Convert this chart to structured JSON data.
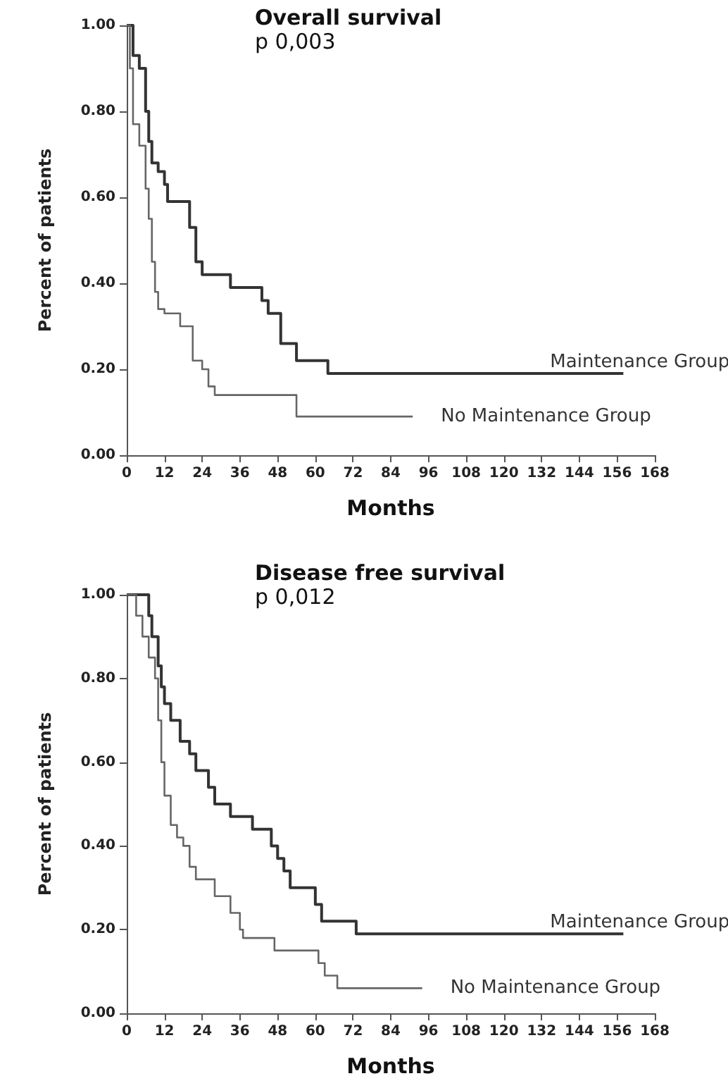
{
  "chart_data": [
    {
      "type": "step",
      "title": "Overall survival",
      "subtitle": "p 0,003",
      "xlabel": "Months",
      "ylabel": "Percent of patients",
      "legend": false,
      "grid": false,
      "marker": "none",
      "xlim": [
        0,
        168
      ],
      "xticks": [
        0,
        12,
        24,
        36,
        48,
        60,
        72,
        84,
        96,
        108,
        120,
        132,
        144,
        156,
        168
      ],
      "ylim": [
        0,
        1
      ],
      "yticks": [
        {
          "value": 0,
          "label": "0.00"
        },
        {
          "value": 0.2,
          "label": "0.20"
        },
        {
          "value": 0.4,
          "label": "0.40"
        },
        {
          "value": 0.6,
          "label": "0.60"
        },
        {
          "value": 0.8,
          "label": "0.80"
        },
        {
          "value": 1,
          "label": "1.00"
        }
      ],
      "series": [
        {
          "name": "Maintenance Group",
          "color": "#333333",
          "x": [
            0,
            2,
            4,
            6,
            7,
            8,
            10,
            12,
            13,
            20,
            22,
            24,
            33,
            43,
            45,
            49,
            54,
            64,
            158
          ],
          "values": [
            1,
            0.93,
            0.9,
            0.8,
            0.73,
            0.68,
            0.66,
            0.63,
            0.59,
            0.53,
            0.45,
            0.42,
            0.39,
            0.36,
            0.33,
            0.26,
            0.22,
            0.19,
            0.19
          ]
        },
        {
          "name": "No Maintenance Group",
          "color": "#666666",
          "x": [
            0,
            1,
            2,
            4,
            6,
            7,
            8,
            9,
            10,
            12,
            17,
            21,
            24,
            26,
            28,
            54,
            91
          ],
          "values": [
            1,
            0.9,
            0.77,
            0.72,
            0.62,
            0.55,
            0.45,
            0.38,
            0.34,
            0.33,
            0.3,
            0.22,
            0.2,
            0.16,
            0.14,
            0.09,
            0.09
          ]
        }
      ]
    },
    {
      "type": "step",
      "title": "Disease free survival",
      "subtitle": "p 0,012",
      "xlabel": "Months",
      "ylabel": "Percent of patients",
      "legend": false,
      "grid": false,
      "marker": "none",
      "xlim": [
        0,
        168
      ],
      "xticks": [
        0,
        12,
        24,
        36,
        48,
        60,
        72,
        84,
        96,
        108,
        120,
        132,
        144,
        156,
        168
      ],
      "ylim": [
        0,
        1
      ],
      "yticks": [
        {
          "value": 0,
          "label": "0.00"
        },
        {
          "value": 0.2,
          "label": "0.20"
        },
        {
          "value": 0.4,
          "label": "0.40"
        },
        {
          "value": 0.6,
          "label": "0.60"
        },
        {
          "value": 0.8,
          "label": "0.80"
        },
        {
          "value": 1,
          "label": "1.00"
        }
      ],
      "series": [
        {
          "name": "Maintenance Group",
          "color": "#333333",
          "x": [
            0,
            7,
            8,
            10,
            11,
            12,
            14,
            17,
            20,
            22,
            26,
            28,
            33,
            40,
            46,
            48,
            50,
            52,
            60,
            62,
            64,
            73,
            158
          ],
          "values": [
            1,
            0.95,
            0.9,
            0.83,
            0.78,
            0.74,
            0.7,
            0.65,
            0.62,
            0.58,
            0.54,
            0.5,
            0.47,
            0.44,
            0.4,
            0.37,
            0.34,
            0.3,
            0.26,
            0.22,
            0.22,
            0.19,
            0.19
          ]
        },
        {
          "name": "No Maintenance Group",
          "color": "#666666",
          "x": [
            0,
            3,
            5,
            7,
            9,
            10,
            11,
            12,
            14,
            16,
            18,
            20,
            22,
            28,
            33,
            36,
            37,
            47,
            61,
            63,
            67,
            94
          ],
          "values": [
            1,
            0.95,
            0.9,
            0.85,
            0.8,
            0.7,
            0.6,
            0.52,
            0.45,
            0.42,
            0.4,
            0.35,
            0.32,
            0.28,
            0.24,
            0.2,
            0.18,
            0.15,
            0.12,
            0.09,
            0.06,
            0.06
          ]
        }
      ]
    }
  ]
}
